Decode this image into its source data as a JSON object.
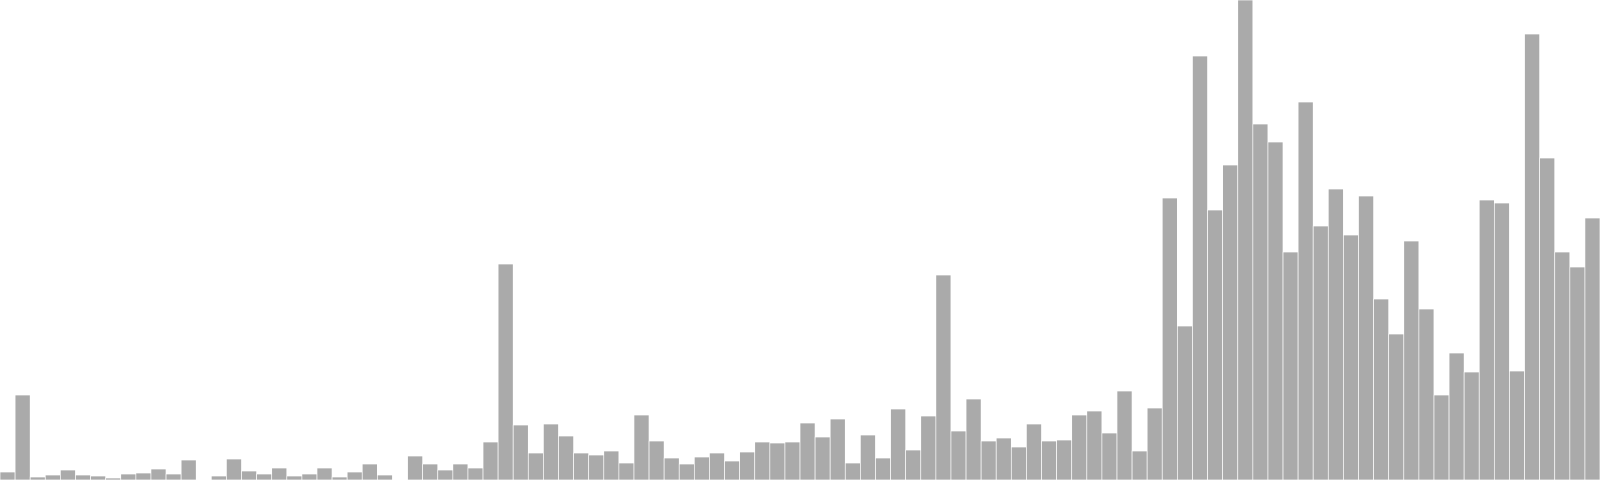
{
  "chart_data": {
    "type": "bar",
    "title": "",
    "xlabel": "",
    "ylabel": "",
    "ylim": [
      0,
      480
    ],
    "grid": false,
    "legend": "none",
    "color": "#aaaaaa",
    "values": [
      8,
      85,
      3,
      5,
      10,
      5,
      4,
      2,
      6,
      7,
      11,
      6,
      20,
      0,
      4,
      21,
      9,
      6,
      12,
      4,
      6,
      12,
      3,
      8,
      16,
      5,
      0,
      24,
      16,
      10,
      16,
      12,
      38,
      216,
      55,
      27,
      56,
      44,
      27,
      25,
      29,
      17,
      65,
      39,
      22,
      16,
      23,
      27,
      19,
      28,
      38,
      37,
      38,
      57,
      43,
      61,
      17,
      45,
      22,
      71,
      30,
      64,
      205,
      49,
      81,
      39,
      42,
      33,
      56,
      39,
      40,
      65,
      69,
      47,
      89,
      29,
      72,
      282,
      154,
      424,
      270,
      315,
      480,
      356,
      338,
      228,
      378,
      254,
      291,
      245,
      284,
      181,
      146,
      239,
      171,
      85,
      127,
      108,
      280,
      277,
      109,
      446,
      322,
      228,
      213,
      262
    ]
  }
}
